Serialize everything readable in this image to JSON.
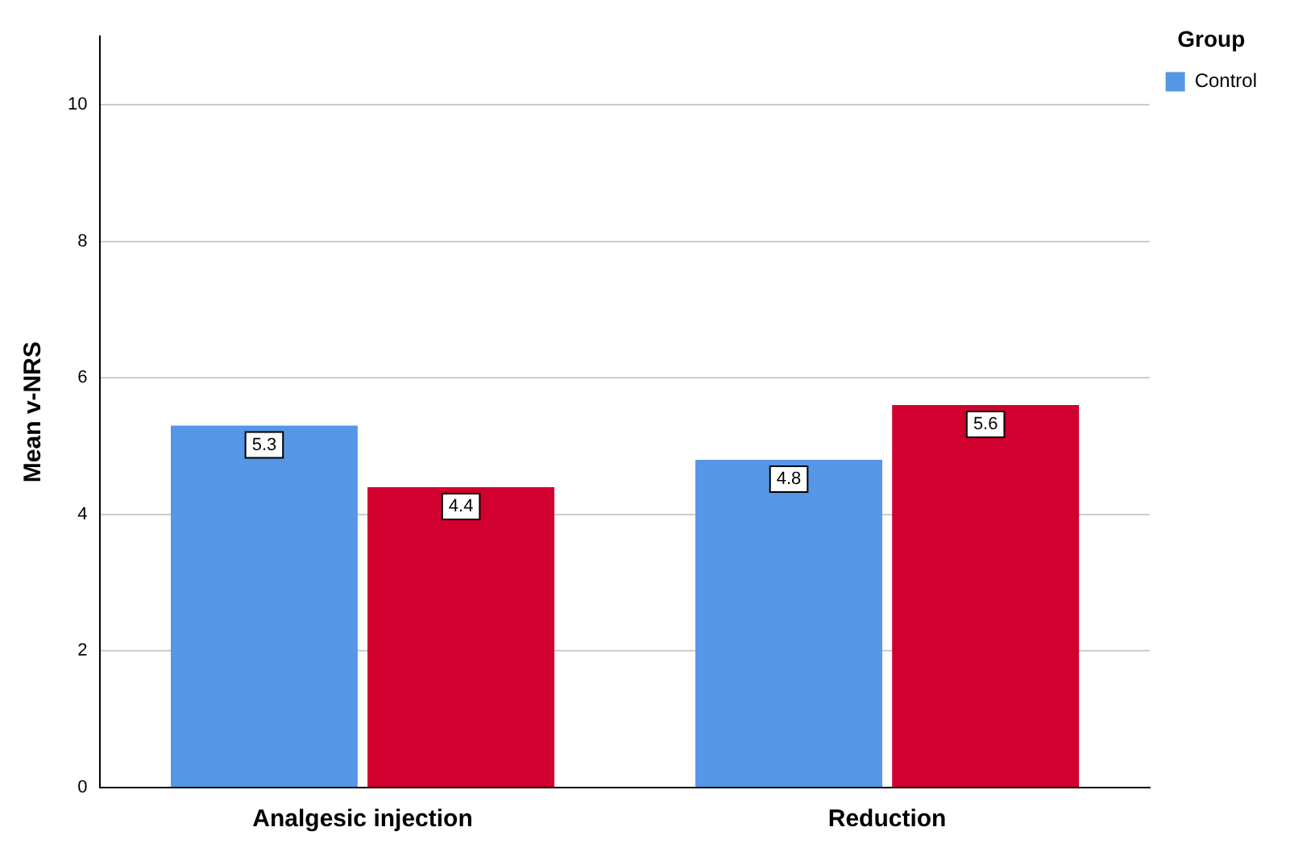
{
  "chart_data": {
    "type": "bar",
    "categories": [
      "Analgesic injection",
      "Reduction"
    ],
    "series": [
      {
        "name": "Control",
        "color": "#5596e6",
        "values": [
          5.3,
          4.8
        ]
      },
      {
        "color": "#d2002e",
        "values": [
          4.4,
          5.6
        ]
      }
    ],
    "ylabel": "Mean v-NRS",
    "legend_title": "Group",
    "ylim": [
      0,
      11
    ],
    "yticks": [
      0,
      2,
      4,
      6,
      8,
      10
    ],
    "grid": "y",
    "legend": "top right",
    "data_labels": true
  }
}
